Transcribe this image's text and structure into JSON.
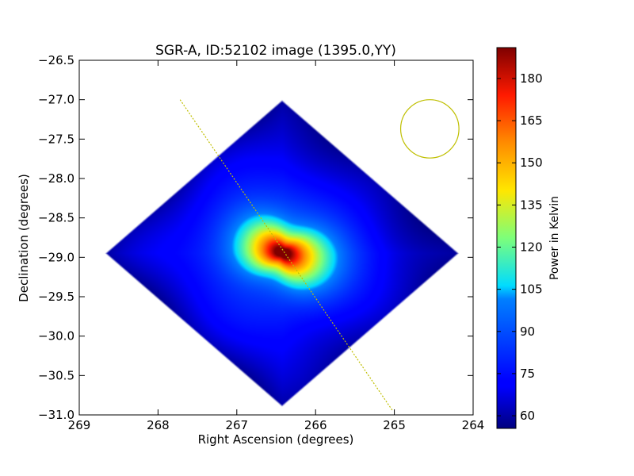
{
  "chart_data": {
    "type": "heatmap",
    "title": "SGR-A, ID:52102 image (1395.0,YY)",
    "xlabel": "Right Ascension (degrees)",
    "ylabel": "Declination (degrees)",
    "xlim": [
      269,
      264
    ],
    "ylim": [
      -31.0,
      -26.5
    ],
    "x_ticks": [
      "269",
      "268",
      "267",
      "266",
      "265",
      "264"
    ],
    "y_ticks": [
      "−26.5",
      "−27.0",
      "−27.5",
      "−28.0",
      "−28.5",
      "−29.0",
      "−29.5",
      "−30.0",
      "−30.5",
      "−31.0"
    ],
    "x_reversed": true,
    "colormap": "jet",
    "colorbar": {
      "label": "Power in Kelvin",
      "range": [
        55.5,
        191.0
      ],
      "ticks": [
        "60",
        "75",
        "90",
        "105",
        "120",
        "135",
        "150",
        "165",
        "180"
      ]
    },
    "background_level": 72,
    "peak": {
      "ra": 266.42,
      "dec": -28.94,
      "value": 191
    },
    "coverage_diamond": {
      "top": {
        "ra": 266.4,
        "dec": -27.0
      },
      "right": {
        "ra": 264.2,
        "dec": -28.95
      },
      "bottom": {
        "ra": 266.4,
        "dec": -30.9
      },
      "left": {
        "ra": 268.7,
        "dec": -28.95
      }
    },
    "beam_circle": {
      "ra": 264.55,
      "dec": -27.37,
      "radius_ra": 0.37,
      "radius_dec": 0.37
    },
    "scan_line": {
      "start": {
        "ra": 267.72,
        "dec": -27.0
      },
      "end": {
        "ra": 265.02,
        "dec": -30.95
      }
    },
    "annotation_color": "#bfbf00",
    "grid": false
  }
}
